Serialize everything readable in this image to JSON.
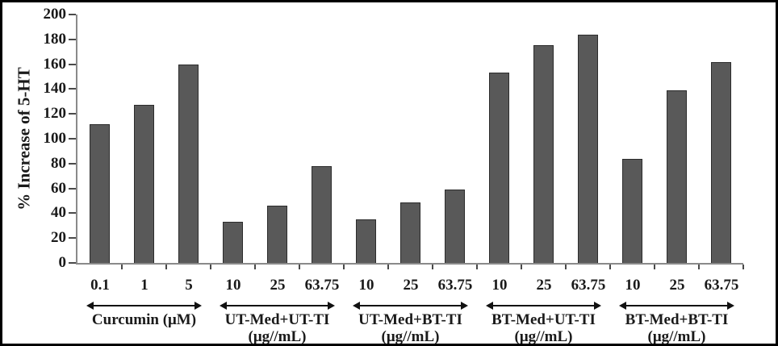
{
  "chart_data": {
    "type": "bar",
    "title": "",
    "ylabel": "% Increase of 5-HT",
    "xlabel": "",
    "ylim": [
      0,
      200
    ],
    "ytick_step": 20,
    "grid": false,
    "legend": "none",
    "bar_color": "#595959",
    "bar_border_color": "#2c2c2c",
    "axis_color": "#8a8a8a",
    "tick_color": "#4a4a4a",
    "text_color": "#1a1a1a",
    "groups": [
      {
        "label": "Curcumin (μM)",
        "unit": "",
        "categories": [
          "0.1",
          "1",
          "5"
        ],
        "values": [
          112,
          127,
          160
        ]
      },
      {
        "label": "UT-Med+UT-TI",
        "unit": "(μg//mL)",
        "categories": [
          "10",
          "25",
          "63.75"
        ],
        "values": [
          33,
          46,
          78
        ]
      },
      {
        "label": "UT-Med+BT-TI",
        "unit": "(μg//mL)",
        "categories": [
          "10",
          "25",
          "63.75"
        ],
        "values": [
          35,
          49,
          59
        ]
      },
      {
        "label": "BT-Med+UT-TI",
        "unit": "(μg//mL)",
        "categories": [
          "10",
          "25",
          "63.75"
        ],
        "values": [
          153,
          175,
          184
        ]
      },
      {
        "label": "BT-Med+BT-TI",
        "unit": "(μg//mL)",
        "categories": [
          "10",
          "25",
          "63.75"
        ],
        "values": [
          84,
          139,
          162
        ]
      }
    ]
  }
}
